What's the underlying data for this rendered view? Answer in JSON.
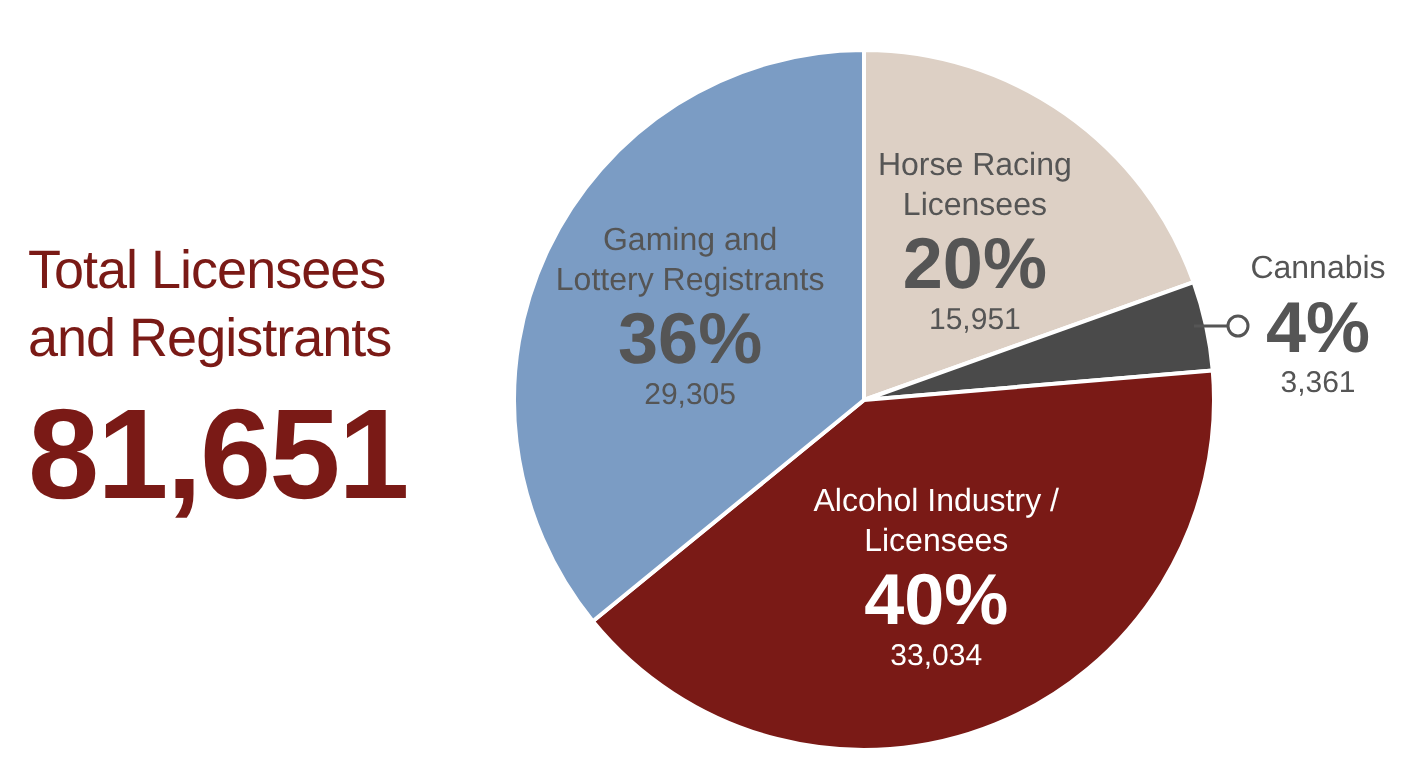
{
  "chart_data": {
    "type": "pie",
    "title": "Total Licensees and Registrants",
    "subtitle": "81,651",
    "categories": [
      "Horse Racing Licensees",
      "Cannabis",
      "Alcohol Industry / Licensees",
      "Gaming and Lottery Registrants"
    ],
    "values": [
      15951,
      3361,
      33034,
      29305
    ],
    "colors": [
      "#ddd0c5",
      "#4a4a4a",
      "#7a1a16",
      "#7b9cc4"
    ],
    "value_labels": [
      "15,951",
      "3,361",
      "33,034",
      "29,305"
    ],
    "annotations": [
      "20%",
      "4%",
      "40%",
      "36%"
    ],
    "legend": false
  }
}
